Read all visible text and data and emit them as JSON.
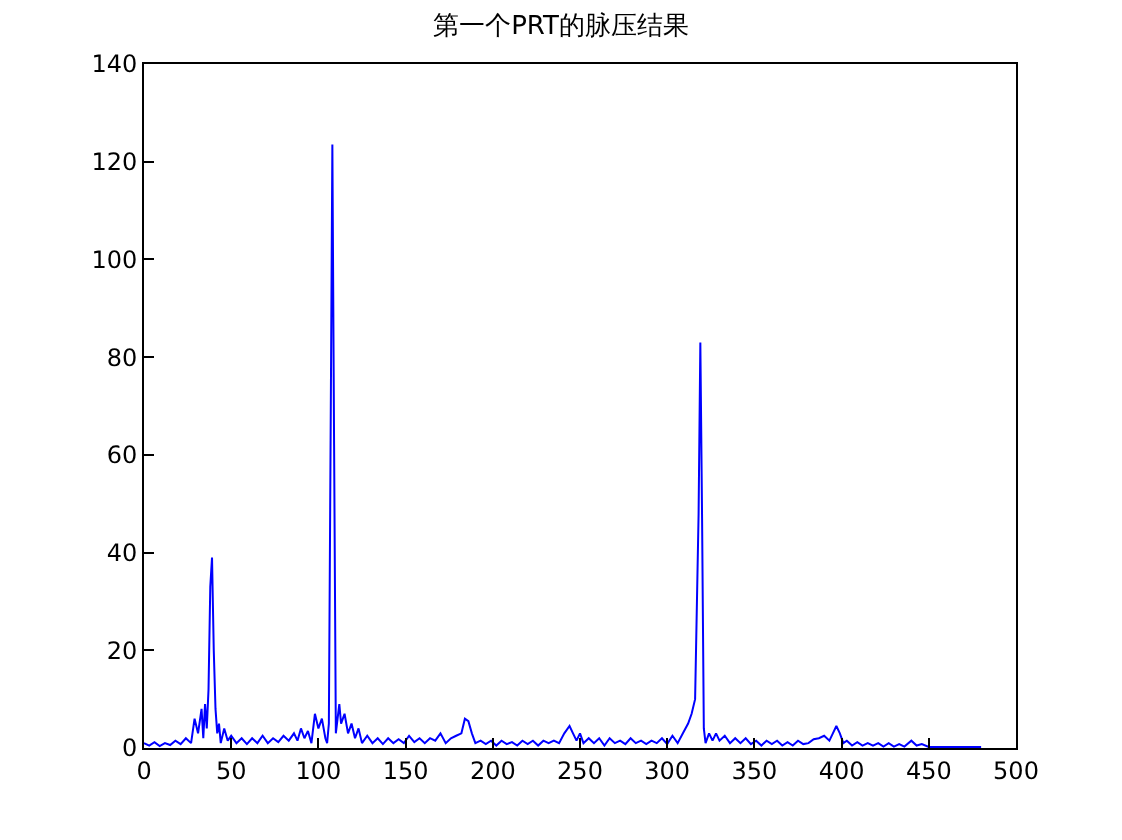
{
  "chart_data": {
    "type": "line",
    "title": "第一个PRT的脉压结果",
    "x": [
      0,
      3,
      6,
      9,
      12,
      15,
      18,
      21,
      24,
      27,
      29,
      31,
      33,
      34,
      35,
      36,
      37,
      38,
      39,
      40,
      41,
      42,
      43,
      44,
      46,
      48,
      50,
      53,
      56,
      59,
      62,
      65,
      68,
      71,
      74,
      77,
      80,
      83,
      86,
      88,
      90,
      92,
      94,
      96,
      98,
      100,
      102,
      104,
      105,
      106,
      107,
      108,
      109,
      110,
      111,
      112,
      113,
      115,
      117,
      119,
      121,
      123,
      125,
      128,
      131,
      134,
      137,
      140,
      143,
      146,
      149,
      152,
      155,
      158,
      161,
      164,
      167,
      170,
      173,
      176,
      179,
      182,
      184,
      186,
      188,
      190,
      193,
      196,
      199,
      202,
      205,
      208,
      211,
      214,
      217,
      220,
      223,
      226,
      229,
      232,
      235,
      238,
      241,
      244,
      246,
      248,
      250,
      252,
      255,
      258,
      261,
      264,
      267,
      270,
      273,
      276,
      279,
      282,
      285,
      288,
      291,
      294,
      297,
      300,
      303,
      306,
      309,
      312,
      314,
      316,
      318,
      319,
      320,
      321,
      322,
      324,
      326,
      328,
      330,
      333,
      336,
      339,
      342,
      345,
      348,
      351,
      354,
      357,
      360,
      363,
      366,
      369,
      372,
      375,
      378,
      381,
      384,
      387,
      390,
      393,
      395,
      397,
      399,
      401,
      403,
      406,
      409,
      412,
      415,
      418,
      421,
      424,
      427,
      430,
      433,
      436,
      440,
      443,
      446,
      450,
      460,
      470,
      480
    ],
    "series": [
      {
        "color": "#0000ff",
        "values": [
          1,
          0.5,
          1.2,
          0.4,
          1,
          0.6,
          1.5,
          0.8,
          2,
          1,
          6,
          3,
          8,
          2,
          9,
          4,
          12,
          33,
          39,
          20,
          8,
          3,
          5,
          1,
          4,
          1.5,
          2.5,
          1,
          2,
          0.8,
          2,
          1,
          2.5,
          1,
          2,
          1.2,
          2.5,
          1.5,
          3,
          1.5,
          4,
          2,
          3.5,
          1,
          7,
          4,
          6,
          2,
          1,
          5,
          63,
          123.5,
          62,
          3,
          6,
          9,
          5,
          7,
          3,
          5,
          2,
          4,
          1,
          2.5,
          1,
          2,
          0.8,
          2,
          1,
          1.8,
          1,
          2.5,
          1.2,
          2,
          1,
          2,
          1.5,
          3,
          1,
          2,
          2.5,
          3,
          6,
          5.5,
          3,
          1,
          1.5,
          0.8,
          1.5,
          0.5,
          1.5,
          0.8,
          1.2,
          0.5,
          1.5,
          0.8,
          1.5,
          0.5,
          1.5,
          1,
          1.5,
          1,
          3,
          4.5,
          3,
          1.5,
          3,
          1,
          2,
          1,
          2,
          0.5,
          2,
          1,
          1.5,
          0.8,
          2,
          1,
          1.5,
          0.8,
          1.5,
          1,
          2,
          0.8,
          2.5,
          1,
          3,
          5,
          7,
          10,
          48,
          83,
          47,
          4,
          1,
          3,
          1.5,
          3,
          1.5,
          2.5,
          1,
          2,
          1,
          2,
          0.8,
          1.5,
          0.5,
          1.5,
          0.8,
          1.5,
          0.5,
          1.2,
          0.5,
          1.5,
          0.8,
          1,
          1.8,
          2,
          2.5,
          1.5,
          3,
          4.5,
          3,
          1,
          1.5,
          0.5,
          1.2,
          0.5,
          1,
          0.5,
          1,
          0.3,
          1,
          0.3,
          0.8,
          0.3,
          1.5,
          0.5,
          0.8,
          0.2,
          0.2,
          0.2,
          0.2
        ]
      }
    ],
    "xlim": [
      0,
      500
    ],
    "xticks": [
      0,
      50,
      100,
      150,
      200,
      250,
      300,
      350,
      400,
      450,
      500
    ],
    "ylim": [
      0,
      140
    ],
    "yticks": [
      0,
      20,
      40,
      60,
      80,
      100,
      120,
      140
    ],
    "marker": "none",
    "line_style": "solid"
  }
}
